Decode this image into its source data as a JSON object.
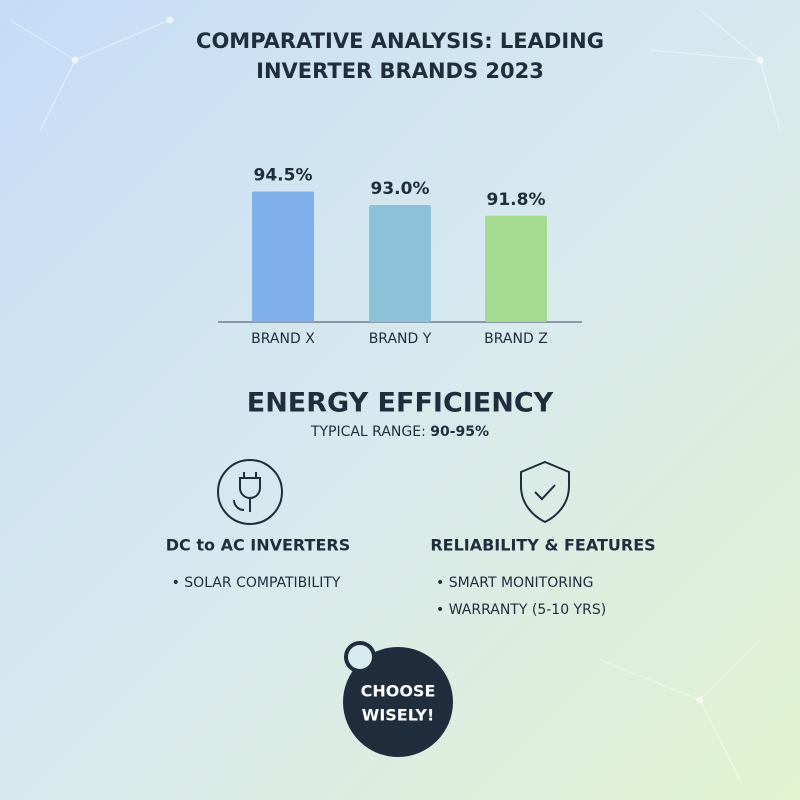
{
  "chart_data": {
    "type": "bar",
    "title": "COMPARATIVE ANALYSIS: LEADING INVERTER BRANDS 2023",
    "categories": [
      "BRAND X",
      "BRAND Y",
      "BRAND Z"
    ],
    "values": [
      94.5,
      93.0,
      91.8
    ],
    "value_labels": [
      "94.5%",
      "93.0%",
      "91.8%"
    ],
    "colors": [
      "#7fb0ea",
      "#8cc2d8",
      "#a4db90"
    ],
    "ylim": [
      80,
      100
    ]
  },
  "efficiency": {
    "heading": "ENERGY EFFICIENCY",
    "range_label": "TYPICAL RANGE:",
    "range": "90-95%"
  },
  "features": [
    {
      "title": "DC to AC INVERTERS",
      "items": [
        "SOLAR COMPATIBILITY"
      ]
    },
    {
      "title": "RELIABILITY & FEATURES",
      "items": [
        "SMART MONITORING",
        "WARRANTY (5-10 YRS)"
      ]
    }
  ],
  "badge": {
    "line1": "CHOOSE",
    "line2": "WISELY!"
  }
}
